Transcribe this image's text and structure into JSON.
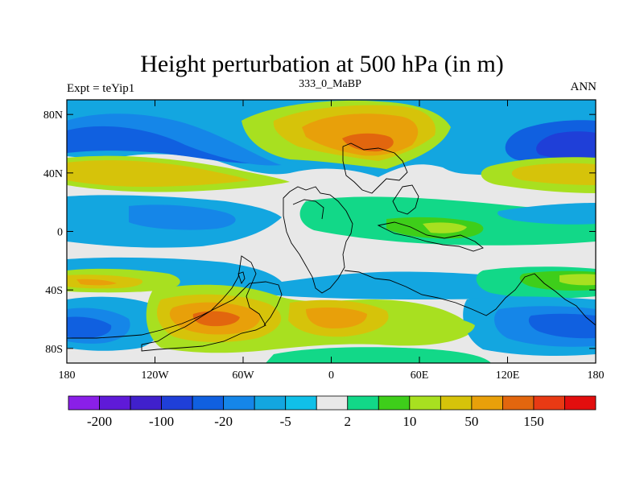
{
  "chart_data": {
    "type": "heatmap",
    "title": "Height perturbation at 500 hPa (in m)",
    "subtitle_left": "Expt = teYip1",
    "subtitle_center": "333_0_MaBP",
    "subtitle_right": "ANN",
    "x": {
      "range": [
        -180,
        180
      ],
      "ticks": [
        {
          "value": -180,
          "label": "180"
        },
        {
          "value": -120,
          "label": "120W"
        },
        {
          "value": -60,
          "label": "60W"
        },
        {
          "value": 0,
          "label": "0"
        },
        {
          "value": 60,
          "label": "60E"
        },
        {
          "value": 120,
          "label": "120E"
        },
        {
          "value": 180,
          "label": "180"
        }
      ]
    },
    "y": {
      "range": [
        -90,
        90
      ],
      "ticks": [
        {
          "value": 80,
          "label": "80N"
        },
        {
          "value": 40,
          "label": "40N"
        },
        {
          "value": 0,
          "label": "0"
        },
        {
          "value": -40,
          "label": "40S"
        },
        {
          "value": -80,
          "label": "80S"
        }
      ]
    },
    "colorbar": {
      "levels": [
        -200,
        -150,
        -100,
        -50,
        -20,
        -10,
        -5,
        -2,
        2,
        5,
        10,
        20,
        50,
        100,
        150,
        200
      ],
      "labels": [
        {
          "level_index": 0,
          "label": "-200"
        },
        {
          "level_index": 2,
          "label": "-100"
        },
        {
          "level_index": 4,
          "label": "-20"
        },
        {
          "level_index": 6,
          "label": "-5"
        },
        {
          "level_index": 8,
          "label": "2"
        },
        {
          "level_index": 10,
          "label": "10"
        },
        {
          "level_index": 12,
          "label": "50"
        },
        {
          "level_index": 14,
          "label": "150"
        }
      ],
      "colors": [
        "#8a1fe8",
        "#5f1ad8",
        "#4020cc",
        "#1f3fd8",
        "#1060e0",
        "#1586e8",
        "#13a6e0",
        "#10c0e8",
        "#e8e8e8",
        "#12d888",
        "#3ece1a",
        "#a8e020",
        "#d6c30a",
        "#e8a00a",
        "#e2660e",
        "#e83a14",
        "#e20e0e"
      ]
    },
    "field_colors": {
      "background": "#e8e8e8",
      "deep_negative": "#1f3fd8",
      "negative": "#1060e0",
      "mid_negative": "#1586e8",
      "weak_negative": "#13a6e0",
      "weak_positive": "#12d888",
      "moderate_positive": "#3ece1a",
      "positive": "#a8e020",
      "strong_positive": "#d6c30a",
      "very_strong_positive": "#e8a00a",
      "extreme_positive": "#e2660e"
    }
  }
}
